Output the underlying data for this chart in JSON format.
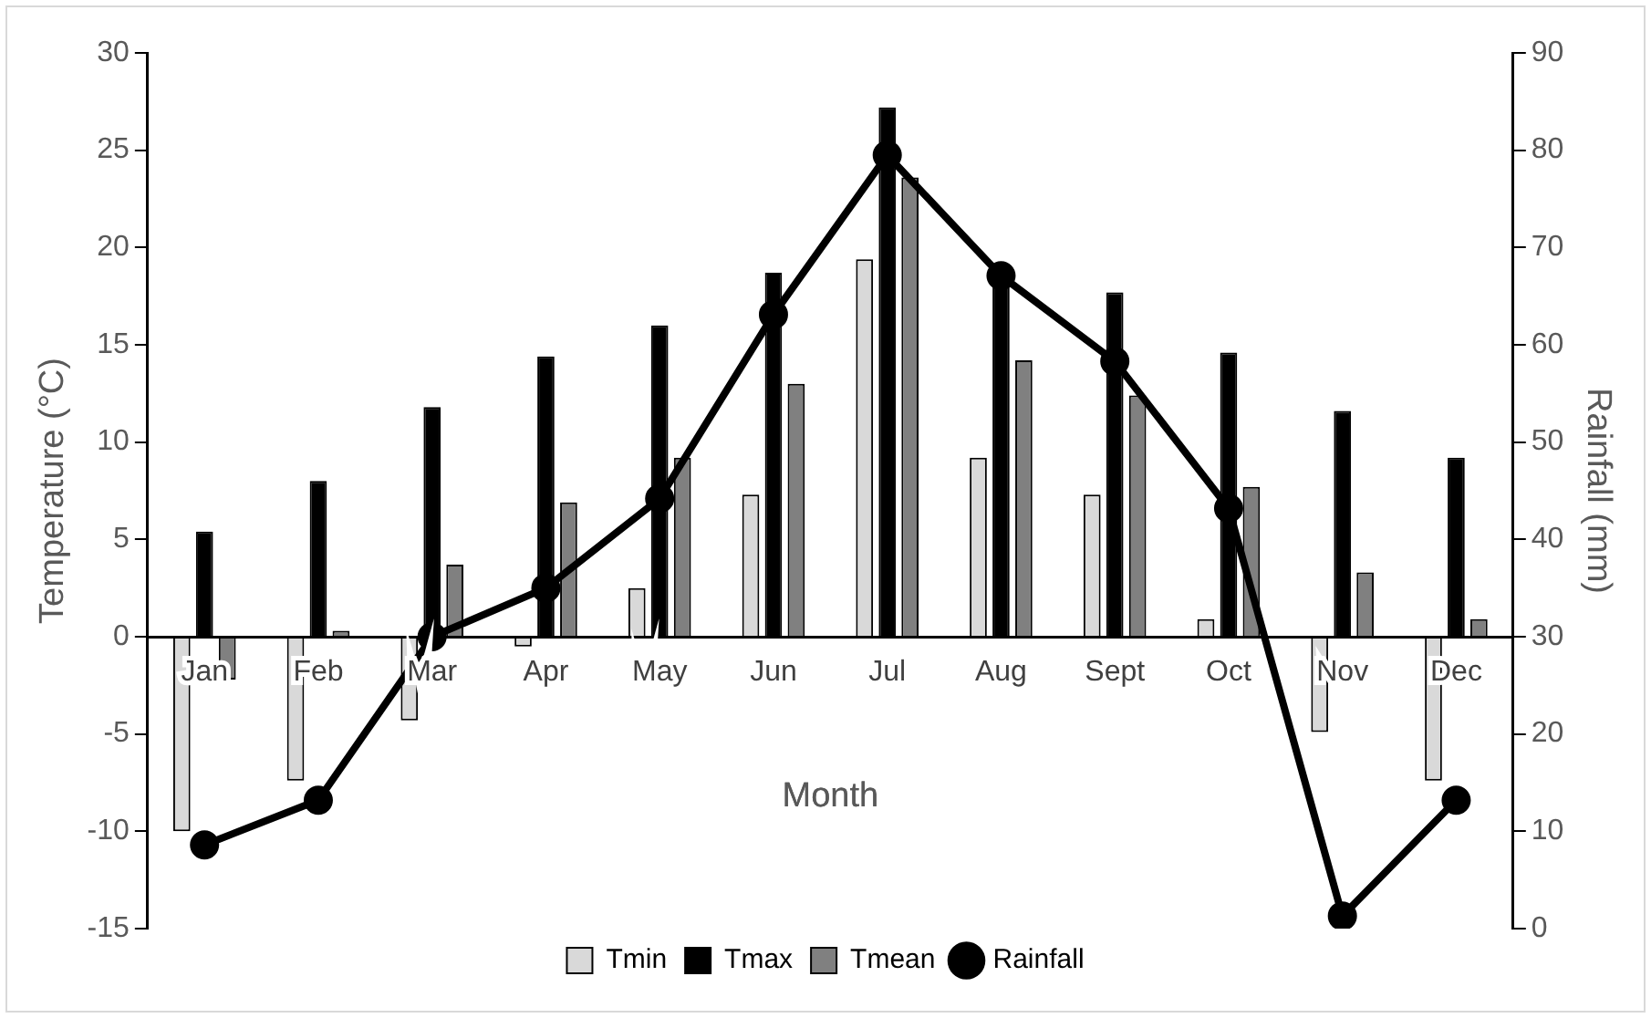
{
  "chart_data": {
    "type": "bar",
    "xlabel": "Month",
    "ylabel": "Temperature (°C)",
    "y2label": "Rainfall (mm)",
    "categories": [
      "Jan",
      "Feb",
      "Mar",
      "Apr",
      "May",
      "Jun",
      "Jul",
      "Aug",
      "Sept",
      "Oct",
      "Nov",
      "Dec"
    ],
    "series": [
      {
        "name": "Tmin",
        "type": "bar",
        "color": "#d9d9d9",
        "values": [
          -10,
          -7.4,
          -4.3,
          -0.5,
          2.5,
          7.3,
          19.4,
          9.2,
          7.3,
          0.9,
          -4.9,
          -7.4
        ]
      },
      {
        "name": "Tmax",
        "type": "bar",
        "color": "#000000",
        "values": [
          5.4,
          8.0,
          11.8,
          14.4,
          16.0,
          18.7,
          27.2,
          18.7,
          17.7,
          14.6,
          11.6,
          9.2
        ]
      },
      {
        "name": "Tmean",
        "type": "bar",
        "color": "#808080",
        "values": [
          -2.2,
          0.3,
          3.7,
          6.9,
          9.2,
          13.0,
          23.6,
          14.2,
          12.4,
          7.7,
          3.3,
          0.9
        ]
      },
      {
        "name": "Rainfall",
        "type": "line",
        "axis": "y2",
        "color": "#000000",
        "values": [
          8.6,
          13.2,
          30,
          35,
          44.2,
          63.1,
          79.5,
          67.1,
          58.3,
          43.2,
          1.3,
          13.2
        ]
      }
    ],
    "ylim": [
      -15,
      30
    ],
    "yticks": [
      -15,
      -10,
      -5,
      0,
      5,
      10,
      15,
      20,
      25,
      30
    ],
    "y2lim": [
      0,
      90
    ],
    "y2ticks": [
      0,
      10,
      20,
      30,
      40,
      50,
      60,
      70,
      80,
      90
    ],
    "grid": false,
    "legend": "bottom",
    "marker": "circle",
    "line_style": "solid"
  }
}
